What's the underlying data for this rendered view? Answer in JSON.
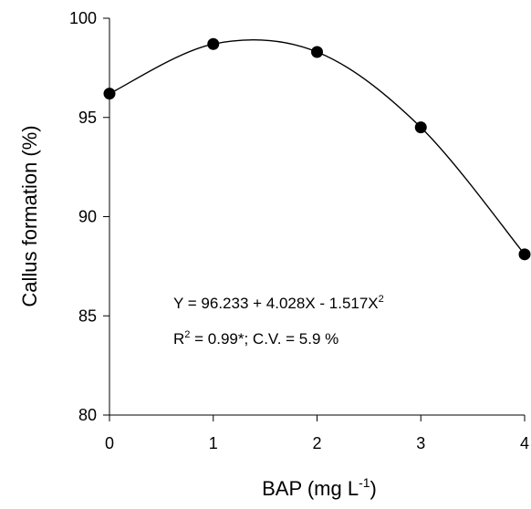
{
  "chart_data": {
    "type": "scatter",
    "xlabel": "BAP (mg L",
    "xlabel_sup": "-1",
    "xlabel_close": ")",
    "ylabel": "Callus formation (%)",
    "xlim": [
      0,
      4
    ],
    "ylim": [
      80,
      100
    ],
    "x_ticks": [
      "0",
      "1",
      "2",
      "3",
      "4"
    ],
    "y_ticks": [
      "80",
      "85",
      "90",
      "95",
      "100"
    ],
    "grid": false,
    "series": [
      {
        "x": [
          0,
          1,
          2,
          3,
          4
        ],
        "y": [
          96.2,
          98.7,
          98.3,
          94.5,
          88.1
        ]
      }
    ],
    "fit": {
      "intercept": 96.233,
      "b1": 4.028,
      "b2": -1.517
    },
    "annotation": {
      "line1": "Y = 96.233 + 4.028X - 1.517X",
      "line1_sup": "2",
      "line2_a": "R",
      "line2_sup": "2",
      "line2_b": " = 0.99*; C.V. = 5.9 %"
    }
  }
}
